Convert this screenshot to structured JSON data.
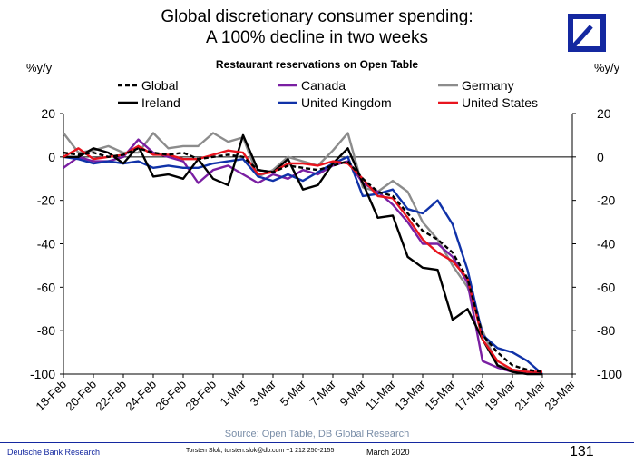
{
  "header": {
    "title_line1": "Global discretionary consumer spending:",
    "title_line2": "A 100% decline in two weeks",
    "unit_left": "%y/y",
    "unit_right": "%y/y"
  },
  "logo": {
    "name": "deutsche-bank-logo",
    "color": "#1428a0"
  },
  "chart_data": {
    "type": "line",
    "title": "Restaurant reservations on Open Table",
    "ylabel_left": "%y/y",
    "ylabel_right": "%y/y",
    "ylim": [
      -100,
      20
    ],
    "yticks": [
      20,
      0,
      -20,
      -40,
      -60,
      -80,
      -100
    ],
    "grid": false,
    "legend_position": "top",
    "x": [
      "18-Feb",
      "19-Feb",
      "20-Feb",
      "21-Feb",
      "22-Feb",
      "23-Feb",
      "24-Feb",
      "25-Feb",
      "26-Feb",
      "27-Feb",
      "28-Feb",
      "29-Feb",
      "1-Mar",
      "2-Mar",
      "3-Mar",
      "4-Mar",
      "5-Mar",
      "6-Mar",
      "7-Mar",
      "8-Mar",
      "9-Mar",
      "10-Mar",
      "11-Mar",
      "12-Mar",
      "13-Mar",
      "14-Mar",
      "15-Mar",
      "16-Mar",
      "17-Mar",
      "18-Mar",
      "19-Mar",
      "20-Mar",
      "21-Mar",
      "22-Mar",
      "23-Mar"
    ],
    "xtick_labels": [
      "18-Feb",
      "20-Feb",
      "22-Feb",
      "24-Feb",
      "26-Feb",
      "28-Feb",
      "1-Mar",
      "3-Mar",
      "5-Mar",
      "7-Mar",
      "9-Mar",
      "11-Mar",
      "13-Mar",
      "15-Mar",
      "17-Mar",
      "19-Mar",
      "21-Mar",
      "23-Mar"
    ],
    "series": [
      {
        "name": "Global",
        "color": "#000000",
        "dash": true,
        "values": [
          2,
          1,
          2,
          0,
          1,
          4,
          2,
          1,
          2,
          -1,
          0,
          1,
          0,
          -6,
          -7,
          -4,
          -5,
          -6,
          -4,
          -2,
          -10,
          -16,
          -18,
          -26,
          -34,
          -38,
          -44,
          -56,
          -82,
          -90,
          -96,
          -98,
          -99,
          null,
          null
        ]
      },
      {
        "name": "Canada",
        "color": "#7a1fa2",
        "values": [
          -5,
          0,
          -2,
          -2,
          0,
          8,
          2,
          0,
          -2,
          -12,
          -6,
          -4,
          -8,
          -12,
          -8,
          -10,
          -6,
          -8,
          -4,
          -2,
          -12,
          -16,
          -22,
          -30,
          -40,
          -40,
          -46,
          -58,
          -94,
          -97,
          -99,
          -99,
          -99,
          null,
          null
        ]
      },
      {
        "name": "Germany",
        "color": "#8c8c8c",
        "values": [
          11,
          2,
          3,
          5,
          2,
          2,
          11,
          4,
          5,
          5,
          11,
          7,
          9,
          -9,
          -6,
          0,
          -2,
          -4,
          3,
          11,
          -14,
          -16,
          -11,
          -16,
          -30,
          -38,
          -50,
          -60,
          -80,
          -96,
          -98,
          -99,
          -100,
          null,
          null
        ]
      },
      {
        "name": "Ireland",
        "color": "#000000",
        "values": [
          0,
          0,
          4,
          2,
          -3,
          5,
          -9,
          -8,
          -10,
          -1,
          -10,
          -13,
          10,
          -6,
          -7,
          -1,
          -15,
          -13,
          -3,
          4,
          -12,
          -28,
          -27,
          -46,
          -51,
          -52,
          -75,
          -70,
          -84,
          -96,
          -99,
          -100,
          -100,
          null,
          null
        ]
      },
      {
        "name": "United Kingdom",
        "color": "#1032a8",
        "values": [
          0,
          -1,
          -3,
          -2,
          -3,
          -2,
          -5,
          -4,
          -5,
          -5,
          -3,
          -2,
          -1,
          -9,
          -11,
          -8,
          -11,
          -7,
          -3,
          0,
          -18,
          -17,
          -15,
          -24,
          -26,
          -20,
          -31,
          -52,
          -82,
          -88,
          -90,
          -94,
          -100,
          null,
          null
        ]
      },
      {
        "name": "United States",
        "color": "#e8141e",
        "values": [
          0,
          4,
          -1,
          0,
          1,
          5,
          1,
          1,
          -1,
          -1,
          1,
          3,
          2,
          -8,
          -7,
          -3,
          -3,
          -4,
          -2,
          -3,
          -10,
          -18,
          -19,
          -28,
          -38,
          -44,
          -48,
          -56,
          -84,
          -94,
          -98,
          -99,
          -99,
          null,
          null
        ]
      }
    ]
  },
  "source": "Source: Open Table, DB Global Research",
  "footer": {
    "left": "Deutsche Bank Research",
    "middle": "Torsten Slok, torsten.slok@db.com  +1 212 250-2155",
    "date": "March  2020",
    "page": "131"
  }
}
